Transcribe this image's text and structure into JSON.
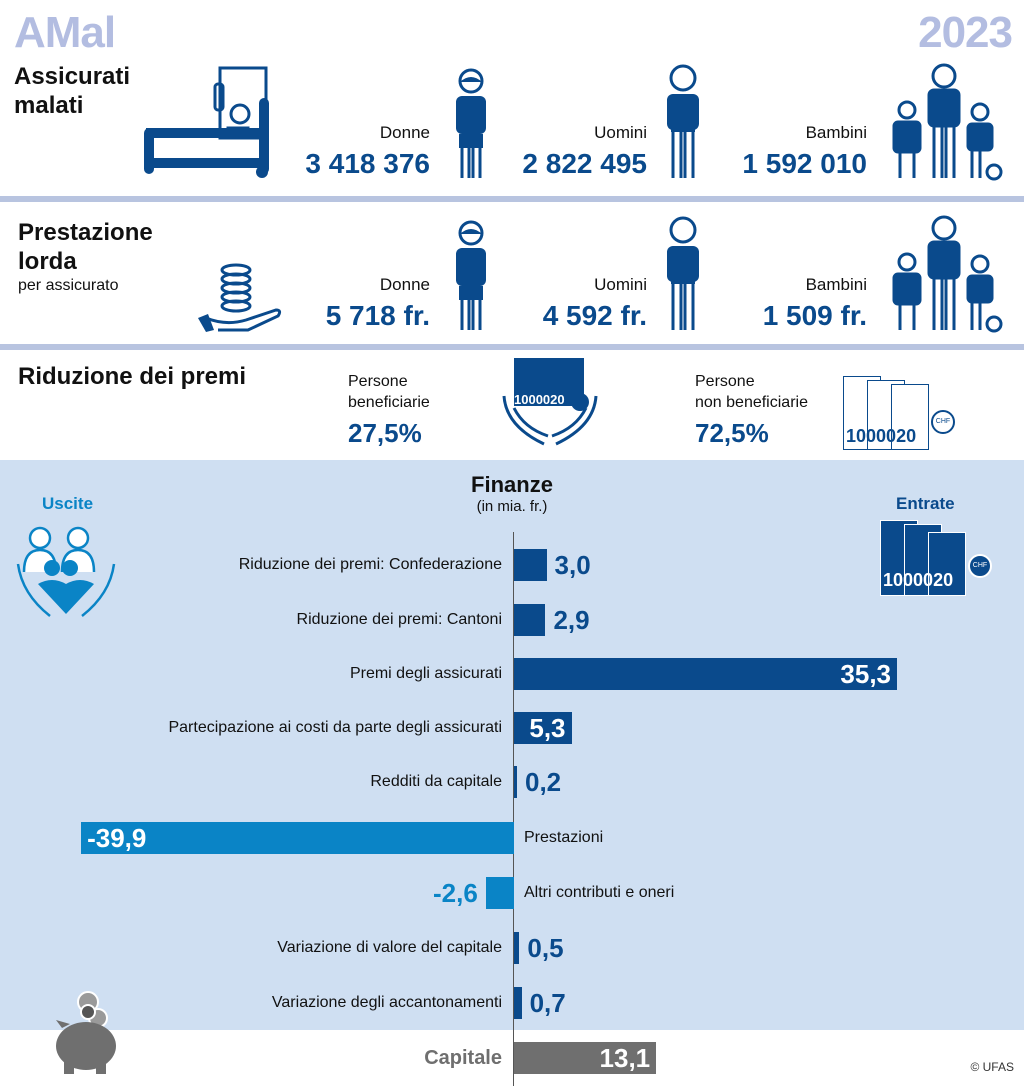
{
  "header": {
    "title": "AMal",
    "year": "2023"
  },
  "assicurati": {
    "title_line1": "Assicurati",
    "title_line2": "malati",
    "groups": [
      {
        "label": "Donne",
        "value": "3 418 376"
      },
      {
        "label": "Uomini",
        "value": "2 822 495"
      },
      {
        "label": "Bambini",
        "value": "1 592 010"
      }
    ]
  },
  "prestazione": {
    "title_line1": "Prestazione",
    "title_line2": "lorda",
    "subtitle": "per assicurato",
    "groups": [
      {
        "label": "Donne",
        "value": "5 718 fr."
      },
      {
        "label": "Uomini",
        "value": "4 592 fr."
      },
      {
        "label": "Bambini",
        "value": "1 509 fr."
      }
    ]
  },
  "riduzione": {
    "title": "Riduzione dei premi",
    "beneficiarie": {
      "line1": "Persone",
      "line2": "beneficiarie",
      "value": "27,5%"
    },
    "non_beneficiarie": {
      "line1": "Persone",
      "line2": "non beneficiarie",
      "value": "72,5%"
    },
    "bill_text": "10000",
    "bill_text2": "20",
    "coin_text": "CHF"
  },
  "finanze": {
    "uscite": "Uscite",
    "entrate": "Entrate",
    "credit": "© UFAS"
  },
  "colors": {
    "dark_blue": "#0a4a8c",
    "light_blue": "#0a84c6",
    "panel": "#cfdff2",
    "gray": "#6f6f6f",
    "title": "#b3bde1"
  },
  "chart_data": {
    "type": "bar",
    "title": "Finanze",
    "subtitle": "(in mia. fr.)",
    "unit": "mia. fr.",
    "categories": [
      "Riduzione dei premi: Confederazione",
      "Riduzione dei premi: Cantoni",
      "Premi degli assicurati",
      "Partecipazione ai costi da parte degli assicurati",
      "Redditi da capitale",
      "Prestazioni",
      "Altri contributi e oneri",
      "Variazione di valore del capitale",
      "Variazione degli accantonamenti",
      "Capitale"
    ],
    "values": [
      3.0,
      2.9,
      35.3,
      5.3,
      0.2,
      -39.9,
      -2.6,
      0.5,
      0.7,
      13.1
    ],
    "value_labels": [
      "3,0",
      "2,9",
      "35,3",
      "5,3",
      "0,2",
      "-39,9",
      "-2,6",
      "0,5",
      "0,7",
      "13,1"
    ],
    "orientation": "horizontal",
    "xlim": [
      -40,
      40
    ]
  }
}
